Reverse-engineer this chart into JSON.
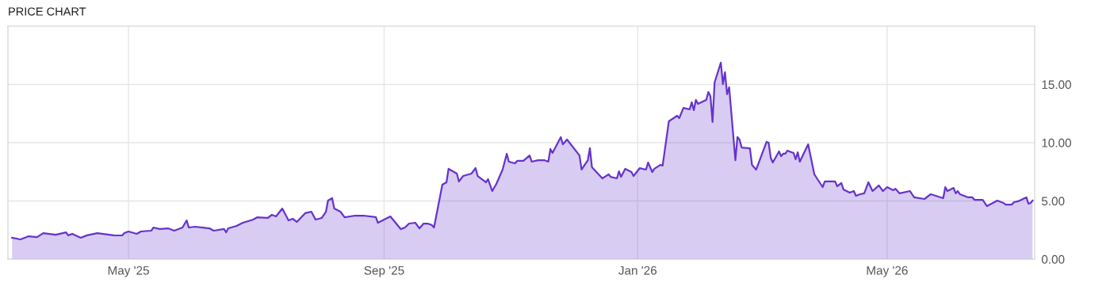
{
  "chart_data": {
    "type": "area",
    "title": "PRICE CHART",
    "x": [
      "2025-03-06",
      "2025-03-10",
      "2025-03-14",
      "2025-03-18",
      "2025-03-21",
      "2025-03-27",
      "2025-04-01",
      "2025-04-02",
      "2025-04-04",
      "2025-04-08",
      "2025-04-11",
      "2025-04-16",
      "2025-04-24",
      "2025-04-28",
      "2025-04-29",
      "2025-05-01",
      "2025-05-05",
      "2025-05-07",
      "2025-05-12",
      "2025-05-13",
      "2025-05-16",
      "2025-05-20",
      "2025-05-23",
      "2025-05-27",
      "2025-05-29",
      "2025-05-30",
      "2025-06-02",
      "2025-06-09",
      "2025-06-11",
      "2025-06-16",
      "2025-06-17",
      "2025-06-18",
      "2025-06-22",
      "2025-06-25",
      "2025-06-30",
      "2025-07-02",
      "2025-07-07",
      "2025-07-09",
      "2025-07-11",
      "2025-07-14",
      "2025-07-17",
      "2025-07-19",
      "2025-07-21",
      "2025-07-25",
      "2025-07-28",
      "2025-07-30",
      "2025-08-02",
      "2025-08-04",
      "2025-08-05",
      "2025-08-07",
      "2025-08-08",
      "2025-08-11",
      "2025-08-13",
      "2025-08-18",
      "2025-08-22",
      "2025-08-28",
      "2025-08-29",
      "2025-09-04",
      "2025-09-09",
      "2025-09-11",
      "2025-09-13",
      "2025-09-16",
      "2025-09-18",
      "2025-09-20",
      "2025-09-22",
      "2025-09-24",
      "2025-09-25",
      "2025-09-29",
      "2025-10-01",
      "2025-10-02",
      "2025-10-06",
      "2025-10-07",
      "2025-10-09",
      "2025-10-13",
      "2025-10-15",
      "2025-10-16",
      "2025-10-20",
      "2025-10-21",
      "2025-10-23",
      "2025-10-25",
      "2025-10-28",
      "2025-10-30",
      "2025-10-31",
      "2025-11-03",
      "2025-11-04",
      "2025-11-07",
      "2025-11-10",
      "2025-11-11",
      "2025-11-14",
      "2025-11-17",
      "2025-11-19",
      "2025-11-20",
      "2025-11-21",
      "2025-11-25",
      "2025-11-26",
      "2025-11-28",
      "2025-12-04",
      "2025-12-05",
      "2025-12-08",
      "2025-12-09",
      "2025-12-10",
      "2025-12-15",
      "2025-12-18",
      "2025-12-19",
      "2025-12-22",
      "2025-12-23",
      "2025-12-24",
      "2025-12-26",
      "2025-12-29",
      "2025-12-30",
      "2026-01-02",
      "2026-01-05",
      "2026-01-06",
      "2026-01-08",
      "2026-01-09",
      "2026-01-12",
      "2026-01-13",
      "2026-01-16",
      "2026-01-20",
      "2026-01-21",
      "2026-01-23",
      "2026-01-26",
      "2026-01-27",
      "2026-01-28",
      "2026-01-29",
      "2026-01-30",
      "2026-02-03",
      "2026-02-04",
      "2026-02-05",
      "2026-02-06",
      "2026-02-07",
      "2026-02-10",
      "2026-02-11",
      "2026-02-12",
      "2026-02-13",
      "2026-02-14",
      "2026-02-17",
      "2026-02-18",
      "2026-02-19",
      "2026-02-20",
      "2026-02-24",
      "2026-02-25",
      "2026-02-27",
      "2026-03-04",
      "2026-03-05",
      "2026-03-06",
      "2026-03-07",
      "2026-03-10",
      "2026-03-11",
      "2026-03-12",
      "2026-03-13",
      "2026-03-14",
      "2026-03-17",
      "2026-03-18",
      "2026-03-19",
      "2026-03-20",
      "2026-03-24",
      "2026-03-27",
      "2026-03-31",
      "2026-04-01",
      "2026-04-06",
      "2026-04-07",
      "2026-04-09",
      "2026-04-10",
      "2026-04-13",
      "2026-04-15",
      "2026-04-16",
      "2026-04-18",
      "2026-04-20",
      "2026-04-22",
      "2026-04-24",
      "2026-04-27",
      "2026-04-29",
      "2026-05-01",
      "2026-05-04",
      "2026-05-05",
      "2026-05-07",
      "2026-05-12",
      "2026-05-14",
      "2026-05-19",
      "2026-05-22",
      "2026-05-28",
      "2026-05-29",
      "2026-05-30",
      "2026-06-02",
      "2026-06-03",
      "2026-06-04",
      "2026-06-05",
      "2026-06-09",
      "2026-06-11",
      "2026-06-12",
      "2026-06-16",
      "2026-06-18",
      "2026-06-23",
      "2026-06-26",
      "2026-06-27",
      "2026-06-30",
      "2026-07-01",
      "2026-07-03",
      "2026-07-07",
      "2026-07-08",
      "2026-07-09",
      "2026-07-10"
    ],
    "series": [
      {
        "color": "#6633cc",
        "values": [
          1.84,
          1.7,
          1.97,
          1.9,
          2.24,
          2.1,
          2.3,
          2.05,
          2.18,
          1.84,
          2.05,
          2.24,
          2.05,
          2.04,
          2.24,
          2.38,
          2.18,
          2.38,
          2.45,
          2.72,
          2.59,
          2.65,
          2.45,
          2.72,
          3.33,
          2.72,
          2.79,
          2.65,
          2.45,
          2.59,
          2.31,
          2.65,
          2.86,
          3.13,
          3.4,
          3.6,
          3.54,
          3.81,
          3.67,
          4.35,
          3.33,
          3.47,
          3.2,
          3.95,
          4.08,
          3.4,
          3.54,
          4.08,
          5.03,
          5.24,
          4.35,
          4.08,
          3.6,
          3.74,
          3.74,
          3.61,
          3.13,
          3.67,
          2.58,
          2.72,
          3.06,
          3.13,
          2.65,
          3.06,
          3.06,
          2.93,
          2.72,
          6.39,
          6.6,
          7.76,
          7.35,
          6.67,
          7.14,
          7.35,
          7.82,
          7.14,
          6.6,
          6.87,
          5.85,
          6.46,
          7.69,
          9.05,
          8.37,
          8.23,
          8.44,
          8.44,
          8.9,
          8.37,
          8.5,
          8.5,
          8.37,
          9.46,
          9.12,
          10.48,
          9.86,
          10.27,
          8.9,
          7.69,
          8.5,
          9.53,
          7.89,
          6.94,
          7.28,
          7.07,
          6.94,
          7.55,
          7.07,
          7.76,
          7.48,
          7.14,
          7.82,
          7.69,
          8.3,
          7.48,
          7.76,
          8.1,
          8.03,
          11.84,
          12.31,
          12.11,
          12.99,
          12.86,
          13.47,
          12.79,
          13.67,
          13.33,
          13.67,
          14.35,
          14.0,
          11.77,
          15.17,
          16.87,
          15.03,
          16.05,
          14.15,
          14.76,
          8.5,
          10.48,
          10.27,
          9.59,
          9.52,
          8.1,
          7.69,
          10.07,
          10.0,
          8.71,
          8.3,
          9.25,
          8.84,
          9.05,
          9.05,
          9.32,
          9.12,
          8.57,
          9.18,
          8.37,
          9.86,
          7.28,
          6.19,
          6.67,
          6.67,
          6.26,
          6.53,
          5.99,
          5.71,
          5.85,
          5.44,
          5.58,
          5.65,
          6.6,
          5.85,
          6.33,
          5.85,
          6.19,
          5.92,
          6.05,
          5.65,
          5.85,
          5.31,
          5.17,
          5.58,
          5.24,
          6.19,
          5.85,
          6.12,
          5.65,
          5.85,
          5.58,
          5.31,
          5.31,
          5.1,
          5.1,
          4.56,
          5.03,
          4.83,
          4.69,
          4.69,
          4.9,
          4.97,
          5.31,
          4.76,
          4.83,
          5.03
        ]
      }
    ],
    "xlim": [
      "2025-03-04",
      "2026-07-11"
    ],
    "xticks": [
      {
        "value": "2025-05-01",
        "label": "May '25"
      },
      {
        "value": "2025-09-01",
        "label": "Sep '25"
      },
      {
        "value": "2026-01-01",
        "label": "Jan '26"
      },
      {
        "value": "2026-05-01",
        "label": "May '26"
      }
    ],
    "ylim": [
      0,
      20
    ],
    "yticks": [
      {
        "value": 0,
        "label": "0.00"
      },
      {
        "value": 5,
        "label": "5.00"
      },
      {
        "value": 10,
        "label": "10.00"
      },
      {
        "value": 15,
        "label": "15.00"
      }
    ],
    "grid": true
  }
}
